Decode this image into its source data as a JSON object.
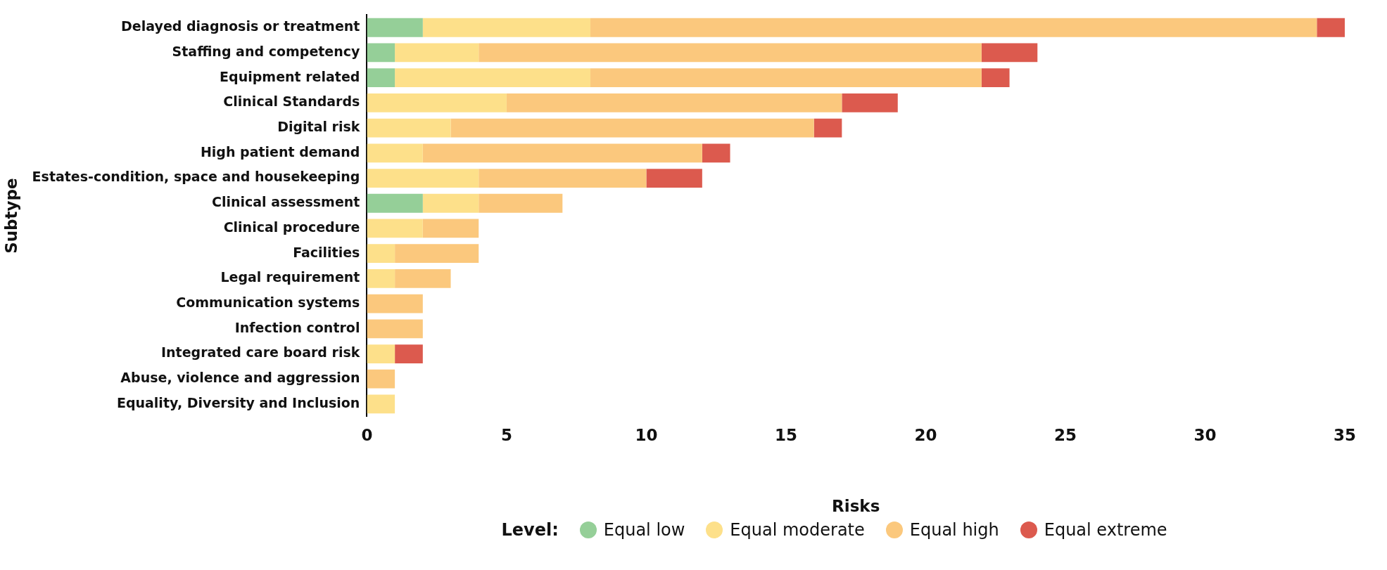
{
  "chart_data": {
    "type": "bar",
    "orientation": "horizontal",
    "stacked": true,
    "xlabel": "Risks",
    "ylabel": "Subtype",
    "legend": "bottom",
    "legend_title": "Level:",
    "categories": [
      "Delayed diagnosis or treatment",
      "Staffing and competency",
      "Equipment related",
      "Clinical Standards",
      "Digital risk",
      "High patient demand",
      "Estates-condition, space and housekeeping",
      "Clinical assessment",
      "Clinical procedure",
      "Facilities",
      "Legal requirement",
      "Communication systems",
      "Infection control",
      "Integrated care board risk",
      "Abuse, violence and aggression",
      "Equality, Diversity and Inclusion"
    ],
    "series": [
      {
        "name": "Equal low",
        "color": "#95cf98",
        "values": [
          2,
          1,
          1,
          0,
          0,
          0,
          0,
          2,
          0,
          0,
          0,
          0,
          0,
          0,
          0,
          0
        ]
      },
      {
        "name": "Equal moderate",
        "color": "#fde08a",
        "values": [
          6,
          3,
          7,
          5,
          3,
          2,
          4,
          2,
          2,
          1,
          1,
          0,
          0,
          1,
          0,
          1
        ]
      },
      {
        "name": "Equal high",
        "color": "#fbc87d",
        "values": [
          26,
          18,
          14,
          12,
          13,
          10,
          6,
          3,
          2,
          3,
          2,
          2,
          2,
          0,
          1,
          0
        ]
      },
      {
        "name": "Equal extreme",
        "color": "#dc5a4e",
        "values": [
          1,
          2,
          1,
          2,
          1,
          1,
          2,
          0,
          0,
          0,
          0,
          0,
          0,
          1,
          0,
          0
        ]
      }
    ],
    "xlim": [
      0,
      35
    ],
    "xticks": [
      0,
      5,
      10,
      15,
      20,
      25,
      30,
      35
    ]
  }
}
